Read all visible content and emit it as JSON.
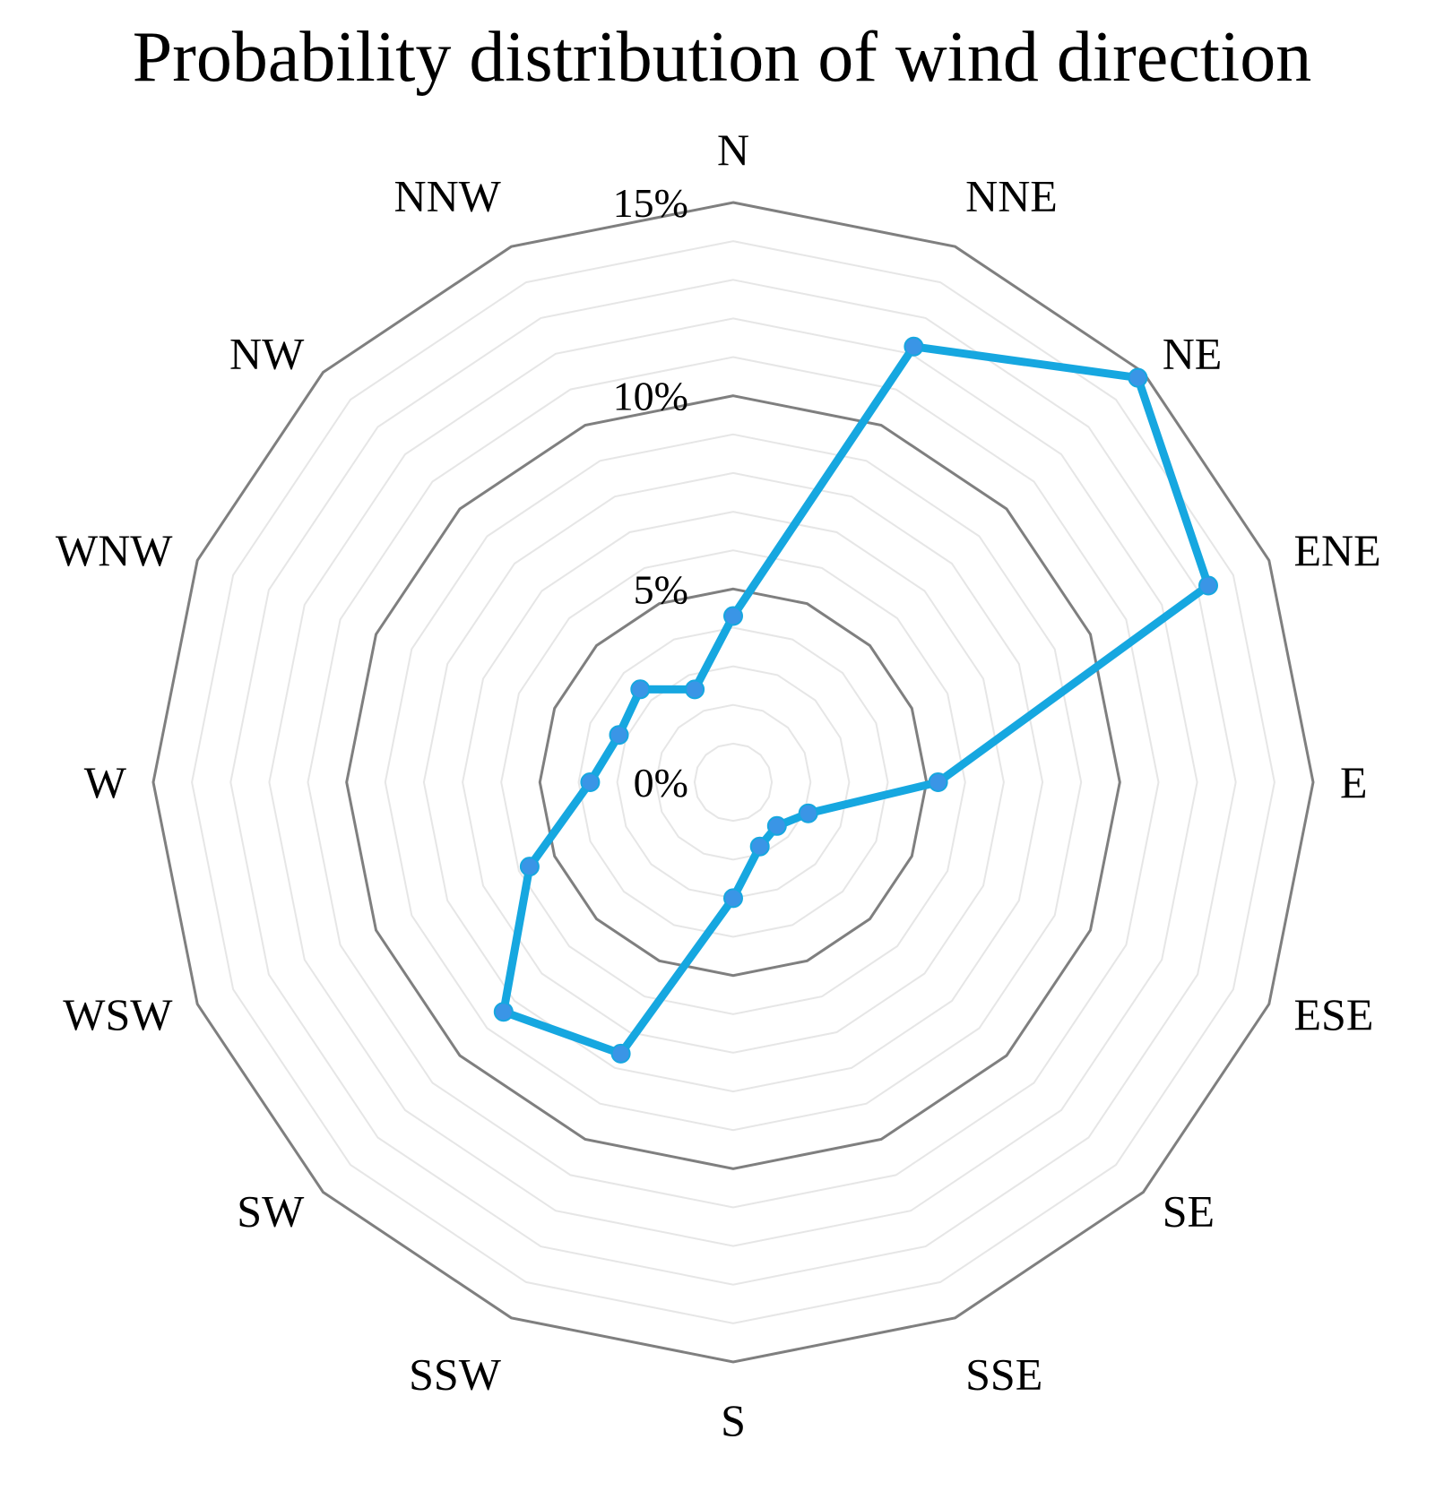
{
  "chart_data": {
    "type": "radar",
    "title": "Probability distribution of wind direction",
    "categories": [
      "N",
      "NNE",
      "NE",
      "ENE",
      "E",
      "ESE",
      "SE",
      "SSE",
      "S",
      "SSW",
      "SW",
      "WSW",
      "W",
      "WNW",
      "NW",
      "NNW"
    ],
    "radial_ticks": [
      "0%",
      "5%",
      "10%",
      "15%"
    ],
    "rmax": 15,
    "series": [
      {
        "values": [
          4.3,
          12.2,
          14.8,
          13.3,
          5.3,
          2.1,
          1.6,
          1.8,
          3.0,
          7.6,
          8.4,
          5.7,
          3.7,
          3.2,
          3.4,
          2.6
        ]
      }
    ],
    "grid": true,
    "colors": {
      "series": "#16a7e0",
      "marker": "#3a95e6",
      "major_grid": "#7f7f7f",
      "minor_grid": "#e6e6e6"
    }
  }
}
